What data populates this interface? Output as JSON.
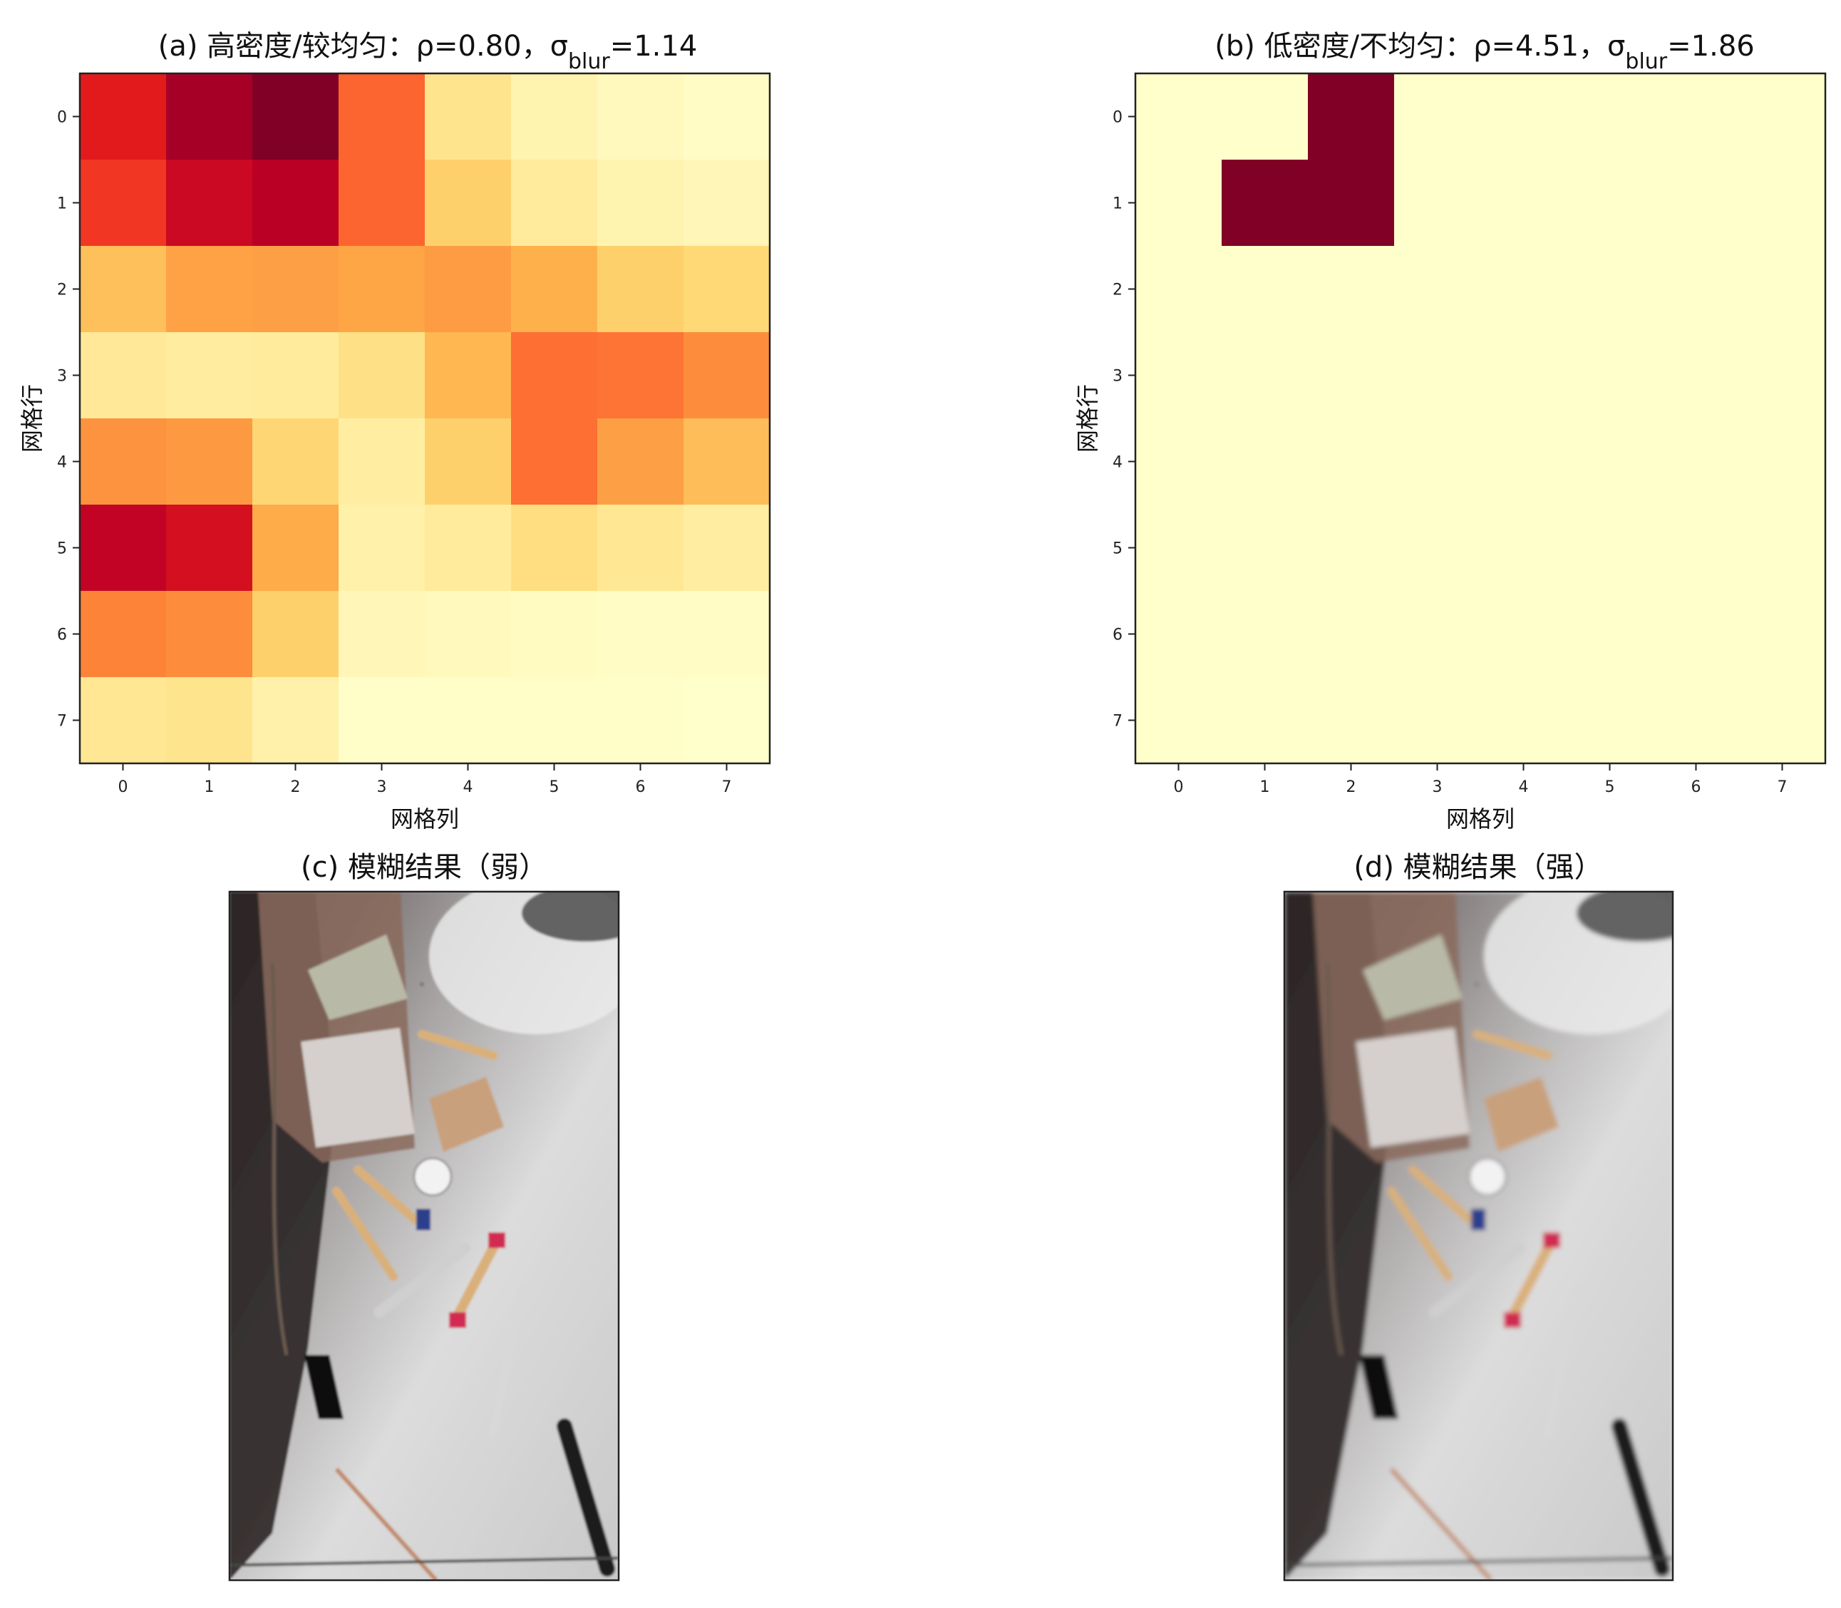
{
  "chart_data": [
    {
      "type": "heatmap",
      "title": "(a) 高密度/较均匀：ρ=0.80，σblur=1.14",
      "title_parts": {
        "main": "(a) 高密度/较均匀：ρ=0.80，σ",
        "sub": "blur",
        "tail": "=1.14"
      },
      "xlabel": "网格列",
      "ylabel": "网格行",
      "x_ticks": [
        "0",
        "1",
        "2",
        "3",
        "4",
        "5",
        "6",
        "7"
      ],
      "y_ticks": [
        "0",
        "1",
        "2",
        "3",
        "4",
        "5",
        "6",
        "7"
      ],
      "colormap": "YlOrRd",
      "vmin": 0,
      "vmax": 1,
      "values": [
        [
          0.75,
          0.92,
          1.0,
          0.58,
          0.18,
          0.08,
          0.04,
          0.02
        ],
        [
          0.68,
          0.83,
          0.88,
          0.58,
          0.28,
          0.14,
          0.08,
          0.06
        ],
        [
          0.33,
          0.43,
          0.44,
          0.42,
          0.45,
          0.38,
          0.28,
          0.25
        ],
        [
          0.15,
          0.13,
          0.14,
          0.2,
          0.36,
          0.56,
          0.55,
          0.5
        ],
        [
          0.48,
          0.46,
          0.26,
          0.12,
          0.28,
          0.56,
          0.44,
          0.34
        ],
        [
          0.86,
          0.8,
          0.4,
          0.1,
          0.14,
          0.22,
          0.16,
          0.12
        ],
        [
          0.52,
          0.5,
          0.28,
          0.06,
          0.04,
          0.03,
          0.02,
          0.02
        ],
        [
          0.16,
          0.18,
          0.1,
          0.01,
          0.01,
          0.01,
          0.01,
          0.0
        ]
      ]
    },
    {
      "type": "heatmap",
      "title": "(b) 低密度/不均匀：ρ=4.51，σblur=1.86",
      "title_parts": {
        "main": "(b) 低密度/不均匀：ρ=4.51，σ",
        "sub": "blur",
        "tail": "=1.86"
      },
      "xlabel": "网格列",
      "ylabel": "网格行",
      "x_ticks": [
        "0",
        "1",
        "2",
        "3",
        "4",
        "5",
        "6",
        "7"
      ],
      "y_ticks": [
        "0",
        "1",
        "2",
        "3",
        "4",
        "5",
        "6",
        "7"
      ],
      "colormap": "YlOrRd",
      "vmin": 0,
      "vmax": 1,
      "values": [
        [
          0,
          0,
          1,
          0,
          0,
          0,
          0,
          0
        ],
        [
          0,
          1,
          1,
          0,
          0,
          0,
          0,
          0
        ],
        [
          0,
          0,
          0,
          0,
          0,
          0,
          0,
          0
        ],
        [
          0,
          0,
          0,
          0,
          0,
          0,
          0,
          0
        ],
        [
          0,
          0,
          0,
          0,
          0,
          0,
          0,
          0
        ],
        [
          0,
          0,
          0,
          0,
          0,
          0,
          0,
          0
        ],
        [
          0,
          0,
          0,
          0,
          0,
          0,
          0,
          0
        ],
        [
          0,
          0,
          0,
          0,
          0,
          0,
          0,
          0
        ]
      ]
    }
  ],
  "photos": [
    {
      "title": "(c) 模糊结果（弱）",
      "blur": "weak"
    },
    {
      "title": "(d) 模糊结果（强）",
      "blur": "strong"
    }
  ],
  "colors": {
    "cmap_stops": [
      "#ffffcc",
      "#ffeda0",
      "#fed976",
      "#feb24c",
      "#fd8d3c",
      "#fc4e2a",
      "#e31a1c",
      "#bd0026",
      "#800026"
    ],
    "floor": "#d8d8d8",
    "shadow": "#2a2423",
    "cardboard": "#8a6a5c",
    "tube_cap_red": "#d12a52",
    "tube_cap_blue": "#2b3f8c",
    "tube_body": "#d9b07a"
  }
}
